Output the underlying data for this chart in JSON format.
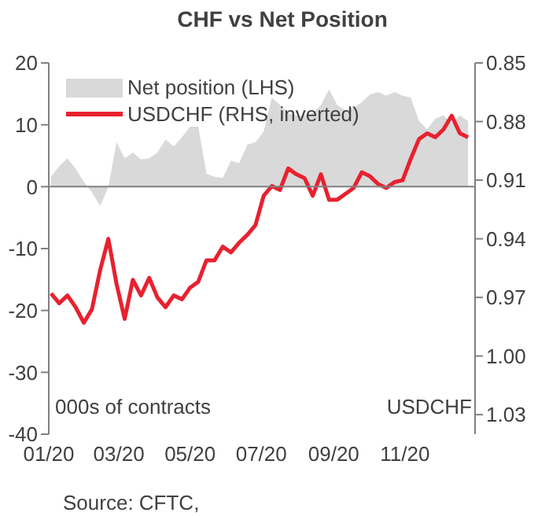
{
  "chart_data": {
    "type": "area",
    "title": "CHF vs Net Position",
    "x": [
      "2020-01-03",
      "2020-01-10",
      "2020-01-17",
      "2020-01-24",
      "2020-01-31",
      "2020-02-07",
      "2020-02-14",
      "2020-02-21",
      "2020-02-28",
      "2020-03-06",
      "2020-03-13",
      "2020-03-20",
      "2020-03-27",
      "2020-04-03",
      "2020-04-10",
      "2020-04-17",
      "2020-04-24",
      "2020-05-01",
      "2020-05-08",
      "2020-05-15",
      "2020-05-22",
      "2020-05-29",
      "2020-06-05",
      "2020-06-12",
      "2020-06-19",
      "2020-06-26",
      "2020-07-03",
      "2020-07-10",
      "2020-07-17",
      "2020-07-24",
      "2020-07-31",
      "2020-08-07",
      "2020-08-14",
      "2020-08-21",
      "2020-08-28",
      "2020-09-04",
      "2020-09-11",
      "2020-09-18",
      "2020-09-25",
      "2020-10-02",
      "2020-10-09",
      "2020-10-16",
      "2020-10-23",
      "2020-10-30",
      "2020-11-06",
      "2020-11-13",
      "2020-11-20",
      "2020-11-27",
      "2020-12-04",
      "2020-12-11",
      "2020-12-18",
      "2020-12-25"
    ],
    "series": [
      {
        "name": "Net position (LHS)",
        "color": "#d9d9d9",
        "values": [
          1.6,
          3.3,
          4.6,
          2.9,
          0.8,
          -0.9,
          -3.1,
          -0.1,
          7.2,
          4.6,
          5.5,
          4.4,
          4.6,
          5.5,
          7.6,
          6.5,
          8.0,
          9.7,
          9.7,
          2.1,
          1.6,
          1.4,
          4.2,
          3.8,
          6.8,
          7.2,
          8.9,
          14.4,
          13.2,
          11.9,
          11.5,
          11.5,
          11.9,
          13.2,
          15.7,
          13.2,
          12.3,
          12.8,
          13.6,
          14.9,
          15.3,
          14.7,
          15.3,
          14.7,
          14.4,
          10.6,
          9.3,
          11.0,
          11.5,
          10.2,
          11.5,
          10.6
        ]
      },
      {
        "name": "USDCHF (RHS, inverted)",
        "type": "line",
        "axis": "y2",
        "color": "#e8212f",
        "values": [
          0.968,
          0.973,
          0.969,
          0.975,
          0.983,
          0.976,
          0.956,
          0.94,
          0.963,
          0.981,
          0.961,
          0.969,
          0.96,
          0.97,
          0.975,
          0.969,
          0.971,
          0.965,
          0.962,
          0.951,
          0.951,
          0.944,
          0.947,
          0.942,
          0.938,
          0.933,
          0.918,
          0.913,
          0.915,
          0.904,
          0.907,
          0.909,
          0.918,
          0.907,
          0.92,
          0.92,
          0.917,
          0.914,
          0.906,
          0.908,
          0.912,
          0.914,
          0.911,
          0.91,
          0.899,
          0.889,
          0.886,
          0.888,
          0.884,
          0.877,
          0.886,
          0.888
        ]
      }
    ],
    "xlim": [
      "2020-01-01",
      "2020-12-31"
    ],
    "xticks": [
      {
        "value": "2020-01-01",
        "label": "01/20"
      },
      {
        "value": "2020-03-01",
        "label": "03/20"
      },
      {
        "value": "2020-05-01",
        "label": "05/20"
      },
      {
        "value": "2020-07-01",
        "label": "07/20"
      },
      {
        "value": "2020-09-01",
        "label": "09/20"
      },
      {
        "value": "2020-11-01",
        "label": "11/20"
      }
    ],
    "ylim": [
      -40,
      20
    ],
    "yticks": [
      -40,
      -30,
      -20,
      -10,
      0,
      10,
      20
    ],
    "y2lim": [
      1.04,
      0.85
    ],
    "y2ticks": [
      {
        "value": 0.85,
        "label": "0.85"
      },
      {
        "value": 0.88,
        "label": "0.88"
      },
      {
        "value": 0.91,
        "label": "0.91"
      },
      {
        "value": 0.94,
        "label": "0.94"
      },
      {
        "value": 0.97,
        "label": "0.97"
      },
      {
        "value": 1.0,
        "label": "1.00"
      },
      {
        "value": 1.03,
        "label": "1.03"
      }
    ],
    "ylabel": "000s of contracts",
    "y2label": "USDCHF",
    "ref_lines": [
      {
        "axis": "y",
        "value": 0,
        "color": "#808080"
      }
    ],
    "legend": "top left",
    "grid": false,
    "marker": "none",
    "line_style": "solid",
    "annotations": [
      "Source: CFTC,"
    ]
  }
}
